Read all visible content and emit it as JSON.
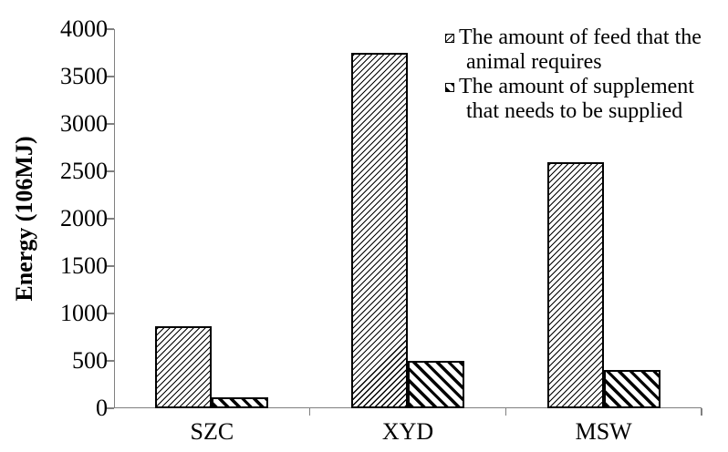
{
  "figure": {
    "background_color": "#ffffff",
    "axis_color": "#808080",
    "bar_border_color": "#000000",
    "hatch_color": "#000000",
    "text_color": "#000000"
  },
  "chart_data": {
    "type": "bar",
    "title": "",
    "xlabel": "",
    "ylabel": "Energy (106MJ)",
    "categories": [
      "SZC",
      "XYD",
      "MSW"
    ],
    "series": [
      {
        "name": "The amount of feed that the animal requires",
        "legend_lines": [
          "The amount of feed that the",
          "animal requires"
        ],
        "hatch": "forward-diagonal-fine",
        "values": [
          870,
          3750,
          2600
        ]
      },
      {
        "name": "The amount of supplement that needs to be supplied",
        "legend_lines": [
          "The amount of supplement",
          "that needs to be supplied"
        ],
        "hatch": "backward-diagonal-bold",
        "values": [
          120,
          500,
          400
        ]
      }
    ],
    "ylim": [
      0,
      4000
    ],
    "ytick_step": 500,
    "yticks": [
      0,
      500,
      1000,
      1500,
      2000,
      2500,
      3000,
      3500,
      4000
    ],
    "grid": false,
    "legend_position": "top-right-inside"
  }
}
